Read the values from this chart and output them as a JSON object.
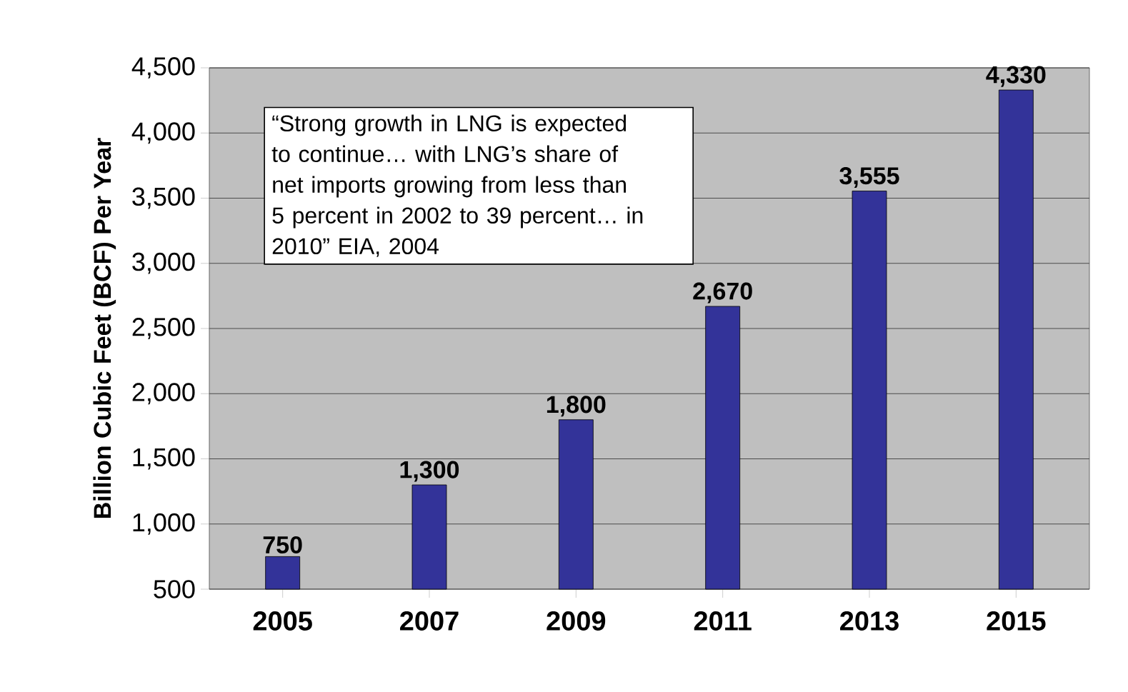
{
  "chart_data": {
    "type": "bar",
    "ylabel": "Billion Cubic Feet (BCF) Per Year",
    "categories": [
      "2005",
      "2007",
      "2009",
      "2011",
      "2013",
      "2015"
    ],
    "values": [
      750,
      1300,
      1800,
      2670,
      3555,
      4330
    ],
    "value_labels": [
      "750",
      "1,300",
      "1,800",
      "2,670",
      "3,555",
      "4,330"
    ],
    "color": "#333399",
    "ylim": [
      500,
      4500
    ],
    "yticks": [
      {
        "value": 500,
        "label": "500"
      },
      {
        "value": 1000,
        "label": "1,000"
      },
      {
        "value": 1500,
        "label": "1,500"
      },
      {
        "value": 2000,
        "label": "2,000"
      },
      {
        "value": 2500,
        "label": "2,500"
      },
      {
        "value": 3000,
        "label": "3,000"
      },
      {
        "value": 3500,
        "label": "3,500"
      },
      {
        "value": 4000,
        "label": "4,000"
      },
      {
        "value": 4500,
        "label": "4,500"
      }
    ],
    "grid": "y",
    "annotations": [
      "“Strong growth in LNG is expected to continue… with LNG’s share of net imports growing from less than 5 percent in 2002 to 39 percent… in 2010” EIA, 2004"
    ]
  }
}
